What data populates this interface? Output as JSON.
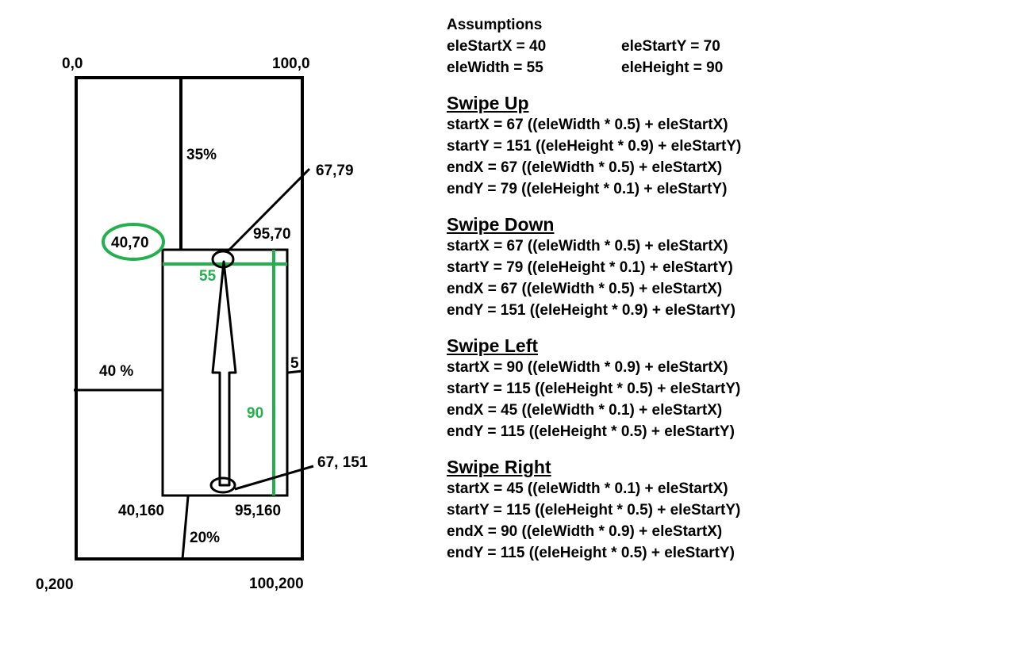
{
  "diagram": {
    "corner_top_left": "0,0",
    "corner_top_right": "100,0",
    "corner_bottom_left": "0,200",
    "corner_bottom_right": "100,200",
    "pct_top": "35%",
    "pct_left": "40 %",
    "pct_bottom": "20%",
    "pct_right": "5",
    "ele_top_left": "40,70",
    "ele_top_right": "95,70",
    "ele_bottom_left": "40,160",
    "ele_bottom_right": "95,160",
    "ele_width": "55",
    "ele_height": "90",
    "swipe_end_point": "67,79",
    "swipe_start_point": "67, 151",
    "colors": {
      "stroke": "#000000",
      "accent": "#22b14c"
    }
  },
  "notes": {
    "assumptions_title": "Assumptions",
    "assumptions": [
      [
        "eleStartX = 40",
        "eleStartY = 70"
      ],
      [
        "eleWidth = 55",
        "eleHeight = 90"
      ]
    ],
    "sections": [
      {
        "title": "Swipe Up",
        "lines": [
          "startX = 67 ((eleWidth * 0.5) + eleStartX)",
          "startY = 151 ((eleHeight * 0.9) + eleStartY)",
          "endX = 67 ((eleWidth * 0.5) + eleStartX)",
          "endY = 79 ((eleHeight * 0.1) + eleStartY)"
        ]
      },
      {
        "title": "Swipe Down",
        "lines": [
          "startX = 67 ((eleWidth * 0.5) + eleStartX)",
          "startY = 79 ((eleHeight * 0.1) + eleStartY)",
          "endX = 67 ((eleWidth * 0.5) + eleStartX)",
          "endY = 151 ((eleHeight * 0.9) + eleStartY)"
        ]
      },
      {
        "title": "Swipe Left",
        "lines": [
          "startX = 90 ((eleWidth * 0.9) + eleStartX)",
          "startY = 115 ((eleHeight * 0.5) + eleStartY)",
          "endX = 45 ((eleWidth * 0.1) + eleStartX)",
          "endY = 115 ((eleHeight * 0.5) + eleStartY)"
        ]
      },
      {
        "title": "Swipe Right",
        "lines": [
          "startX = 45 ((eleWidth * 0.1) + eleStartX)",
          "startY = 115 ((eleHeight * 0.5) + eleStartY)",
          "endX = 90 ((eleWidth * 0.9) + eleStartX)",
          "endY = 115 ((eleHeight * 0.5) + eleStartY)"
        ]
      }
    ]
  }
}
